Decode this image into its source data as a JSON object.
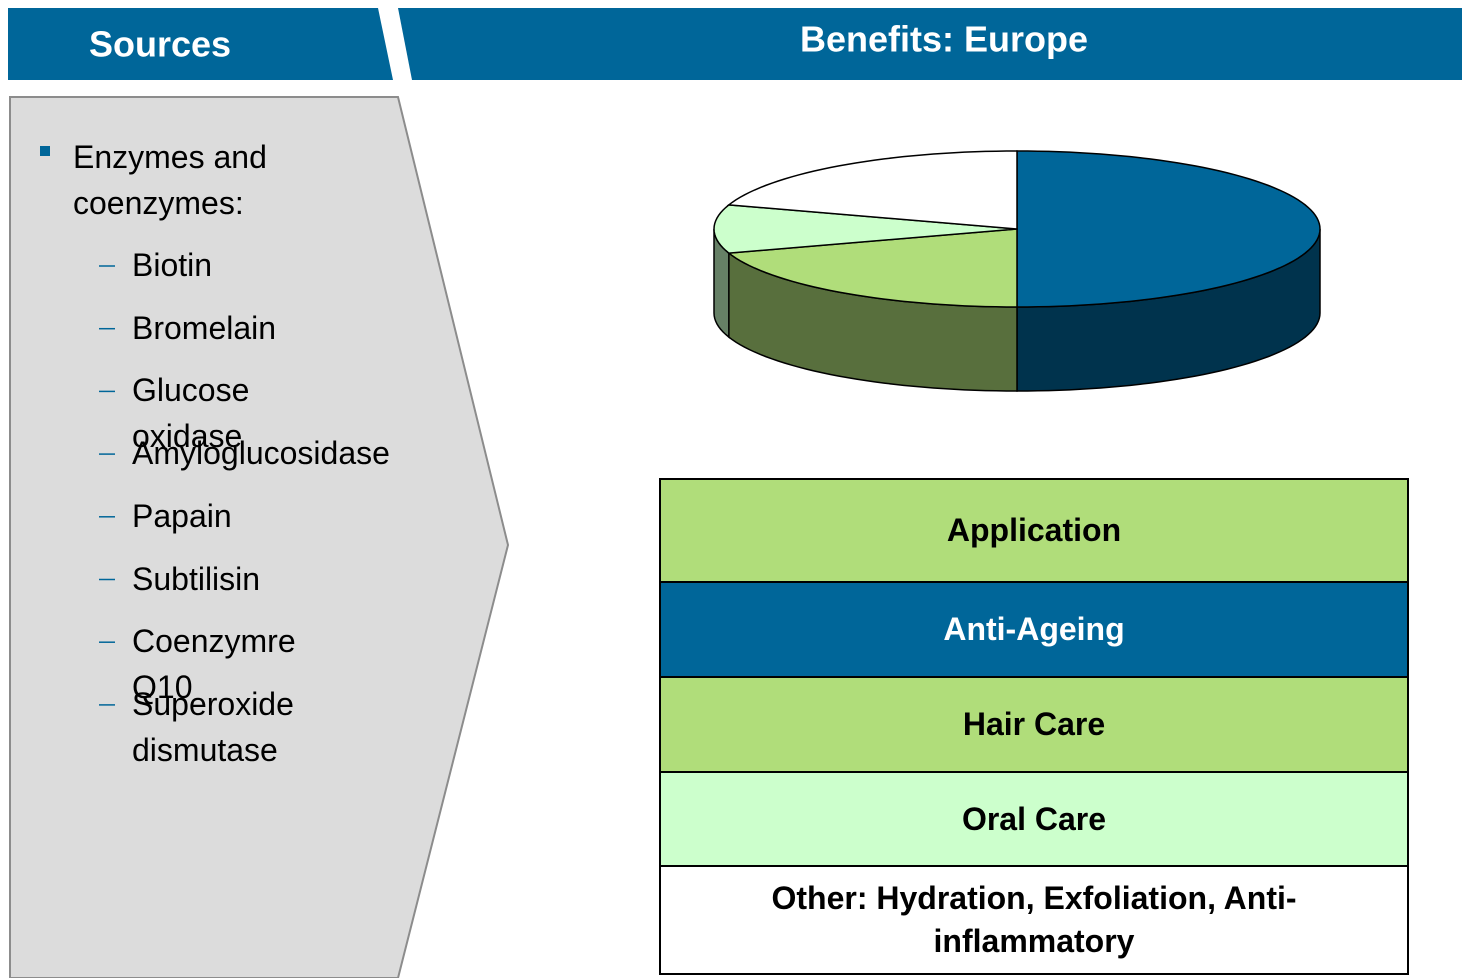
{
  "sources": {
    "title": "Sources",
    "items": [
      {
        "text": "Enzymes and coenzymes:",
        "subitems": [
          "Biotin",
          "Bromelain",
          "Glucose oxidase",
          "Amyloglucosidase",
          "Papain",
          "Subtilisin",
          "Coenzymre Q10",
          "Superoxide dismutase"
        ]
      }
    ]
  },
  "chart_data": {
    "type": "pie",
    "title": "Benefits: Europe",
    "legend_title": "Application",
    "categories": [
      "Anti-Ageing",
      "Hair Care",
      "Oral Care",
      "Other: Hydration, Exfoliation, Anti-inflammatory"
    ],
    "values": [
      50,
      20,
      10,
      20
    ],
    "colors": [
      "#006699",
      "#b0dd7a",
      "#ccffcc",
      "#ffffff"
    ]
  }
}
